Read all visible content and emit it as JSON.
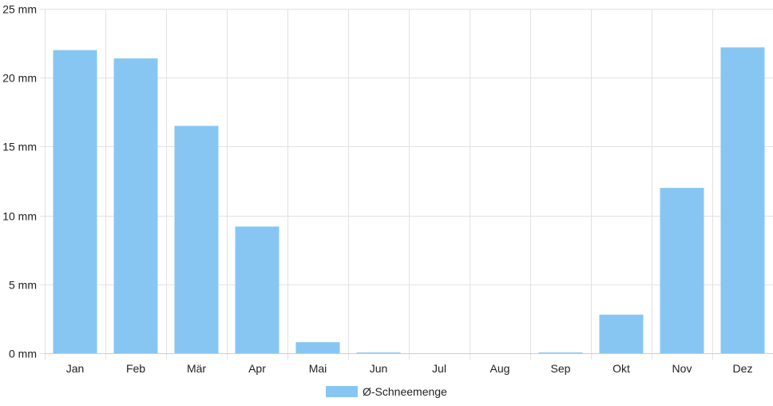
{
  "chart_data": {
    "type": "bar",
    "categories": [
      "Jan",
      "Feb",
      "Mär",
      "Apr",
      "Mai",
      "Jun",
      "Jul",
      "Aug",
      "Sep",
      "Okt",
      "Nov",
      "Dez"
    ],
    "series": [
      {
        "name": "Ø-Schneemenge",
        "values": [
          22.0,
          21.4,
          16.5,
          9.2,
          0.8,
          0.05,
          0,
          0,
          0.05,
          2.8,
          12.0,
          22.2
        ],
        "color": "#87c6f2"
      }
    ],
    "ylim": [
      0,
      25
    ],
    "yticks": [
      0,
      5,
      10,
      15,
      20,
      25
    ],
    "ytick_unit": "mm",
    "ytick_labels": [
      "0 mm",
      "5 mm",
      "10 mm",
      "15 mm",
      "20 mm",
      "25 mm"
    ],
    "grid": true,
    "legend_position": "bottom-center",
    "colors": {
      "bar": "#87c6f2",
      "grid": "#e2e2e2",
      "text": "#222222"
    }
  }
}
